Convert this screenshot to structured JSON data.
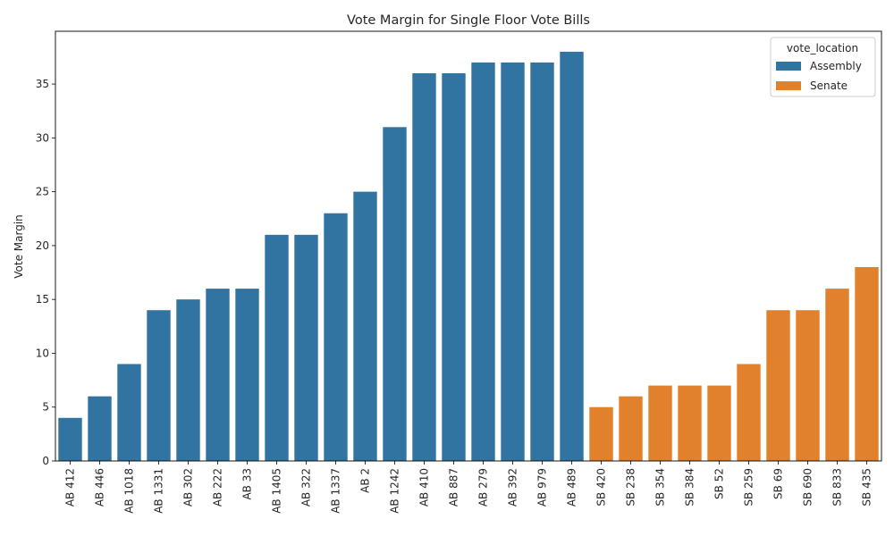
{
  "chart_data": {
    "type": "bar",
    "title": "Vote Margin for Single Floor Vote Bills",
    "xlabel": "",
    "ylabel": "Vote Margin",
    "ylim": [
      0,
      39.9
    ],
    "yticks": [
      0,
      5,
      10,
      15,
      20,
      25,
      30,
      35
    ],
    "grid": false,
    "legend": {
      "title": "vote_location",
      "placement": "top-right",
      "entries": [
        {
          "name": "Assembly",
          "color": "#3274a1"
        },
        {
          "name": "Senate",
          "color": "#e1812c"
        }
      ]
    },
    "categories": [
      "AB 412",
      "AB 446",
      "AB 1018",
      "AB 1331",
      "AB 302",
      "AB 222",
      "AB 33",
      "AB 1405",
      "AB 322",
      "AB 1337",
      "AB 2",
      "AB 1242",
      "AB 410",
      "AB 887",
      "AB 279",
      "AB 392",
      "AB 979",
      "AB 489",
      "SB 420",
      "SB 238",
      "SB 354",
      "SB 384",
      "SB 52",
      "SB 259",
      "SB 69",
      "SB 690",
      "SB 833",
      "SB 435"
    ],
    "series": [
      {
        "name": "Assembly",
        "color": "#3274a1",
        "values": [
          4,
          6,
          9,
          14,
          15,
          16,
          16,
          21,
          21,
          23,
          25,
          31,
          36,
          36,
          37,
          37,
          37,
          38,
          null,
          null,
          null,
          null,
          null,
          null,
          null,
          null,
          null,
          null
        ]
      },
      {
        "name": "Senate",
        "color": "#e1812c",
        "values": [
          null,
          null,
          null,
          null,
          null,
          null,
          null,
          null,
          null,
          null,
          null,
          null,
          null,
          null,
          null,
          null,
          null,
          null,
          5,
          6,
          7,
          7,
          7,
          9,
          14,
          14,
          16,
          18
        ]
      }
    ]
  }
}
